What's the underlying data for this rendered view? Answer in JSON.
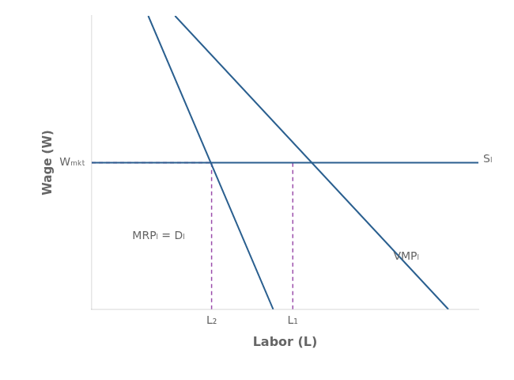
{
  "chart_data": {
    "type": "line",
    "xlabel": "Labor (L)",
    "ylabel": "Wage (W)",
    "xlim": [
      0,
      10
    ],
    "ylim": [
      0,
      10
    ],
    "xticks": [],
    "yticks": [],
    "tick_labels": false,
    "grid": false,
    "series": [
      {
        "x": [
          2.1535353535353536,
          9.224242424242425
        ],
        "values": [
          10,
          0
        ],
        "color": "#2a5f8f",
        "line_style": "solid"
      },
      {
        "x": [
          1.4616161616161616,
          4.693939393939394
        ],
        "values": [
          10,
          0
        ],
        "color": "#2a5f8f",
        "line_style": "solid"
      },
      {
        "x": [
          0,
          10
        ],
        "values": [
          5.0,
          5.0
        ],
        "color": "#2a5f8f",
        "line_style": "solid"
      },
      {
        "x": [
          5.2,
          5.2
        ],
        "values": [
          0,
          5.0
        ],
        "color": "#9b4dab",
        "line_style": "dashed"
      },
      {
        "x": [
          3.1,
          3.1
        ],
        "values": [
          0,
          5.0
        ],
        "color": "#9b4dab",
        "line_style": "dashed"
      },
      {
        "x": [
          0,
          3.1
        ],
        "values": [
          5.0,
          5.0
        ],
        "color": "#9b4dab",
        "line_style": "dashed"
      }
    ],
    "annotations": [
      {
        "text": "Wₘₖₜ",
        "y": 5.0
      },
      {
        "text": "Sₗ",
        "x": 10,
        "y": 5.0
      },
      {
        "text": "VMPₗ",
        "x": 7.8,
        "y": 1.8
      },
      {
        "text": "MRPₗ = Dₗ",
        "x": 1.05,
        "y": 2.5
      },
      {
        "text": "L₁",
        "x": 5.2
      },
      {
        "text": "L₂",
        "x": 3.1
      }
    ]
  }
}
